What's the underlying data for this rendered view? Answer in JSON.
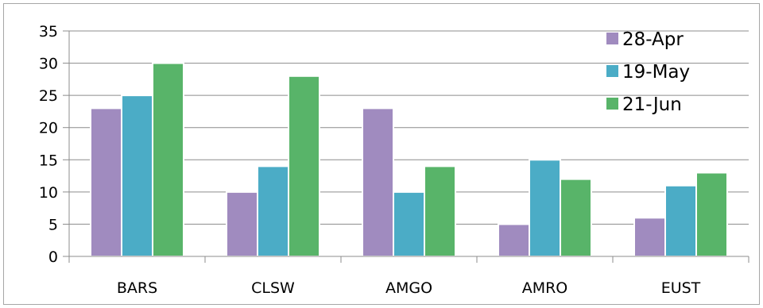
{
  "chart_data": {
    "type": "bar",
    "title": "",
    "xlabel": "",
    "ylabel": "",
    "categories": [
      "BARS",
      "CLSW",
      "AMGO",
      "AMRO",
      "EUST"
    ],
    "series": [
      {
        "name": "28-Apr",
        "color": "#a08bbf",
        "values": [
          23,
          10,
          23,
          5,
          6
        ]
      },
      {
        "name": "19-May",
        "color": "#4bacc6",
        "values": [
          25,
          14,
          10,
          15,
          11
        ]
      },
      {
        "name": "21-Jun",
        "color": "#58b469",
        "values": [
          30,
          28,
          14,
          12,
          13
        ]
      }
    ],
    "ylim": [
      0,
      35
    ],
    "yticks": [
      0,
      5,
      10,
      15,
      20,
      25,
      30,
      35
    ],
    "grid": true,
    "legend_position": "top-right"
  }
}
